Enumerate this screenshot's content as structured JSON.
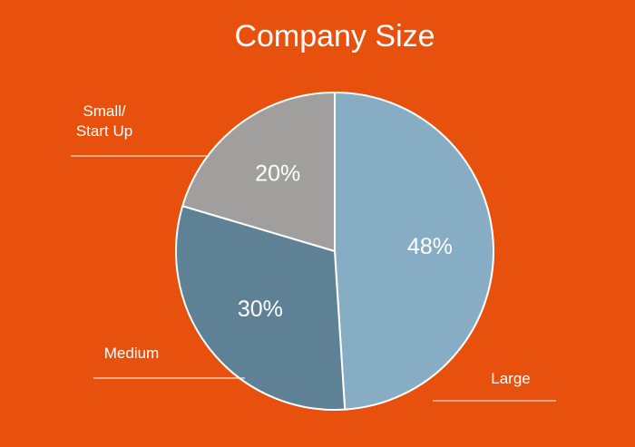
{
  "chart_data": {
    "type": "pie",
    "title": "Company Size",
    "categories": [
      "Large",
      "Medium",
      "Small/\nStart Up"
    ],
    "values": [
      48,
      30,
      20
    ],
    "value_labels": [
      "48%",
      "30%",
      "20%"
    ],
    "colors": [
      "#87adc5",
      "#5f8196",
      "#a09f9e"
    ]
  }
}
